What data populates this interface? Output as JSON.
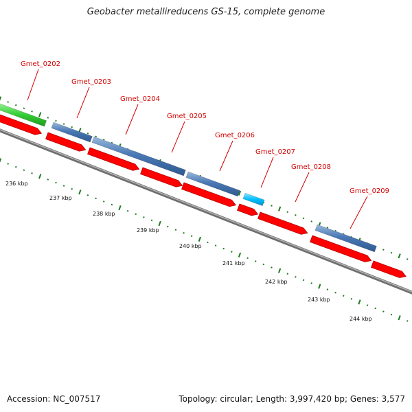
{
  "title": "Geobacter metallireducens GS-15, complete genome",
  "footer": {
    "accession": "Accession: NC_007517",
    "summary": "Topology: circular; Length: 3,997,420 bp; Genes: 3,577"
  },
  "colors": {
    "cds_red": "#ff0000",
    "cds_red_edge": "#b00000",
    "gene_blue": "#4a79b5",
    "gene_blue_light": "#8fb0d6",
    "gene_cyan": "#00bfff",
    "gene_green": "#33cc33",
    "backbone": "#8a8a8a",
    "tick_green": "#1e7b1e",
    "label_red": "#d40000"
  },
  "genes": [
    {
      "name": "Gmet_0202"
    },
    {
      "name": "Gmet_0203"
    },
    {
      "name": "Gmet_0204"
    },
    {
      "name": "Gmet_0205"
    },
    {
      "name": "Gmet_0206"
    },
    {
      "name": "Gmet_0207"
    },
    {
      "name": "Gmet_0208"
    },
    {
      "name": "Gmet_0209"
    }
  ],
  "scale_labels": [
    "236 kbp",
    "237 kbp",
    "238 kbp",
    "239 kbp",
    "240 kbp",
    "241 kbp",
    "242 kbp",
    "243 kbp",
    "244 kbp"
  ]
}
